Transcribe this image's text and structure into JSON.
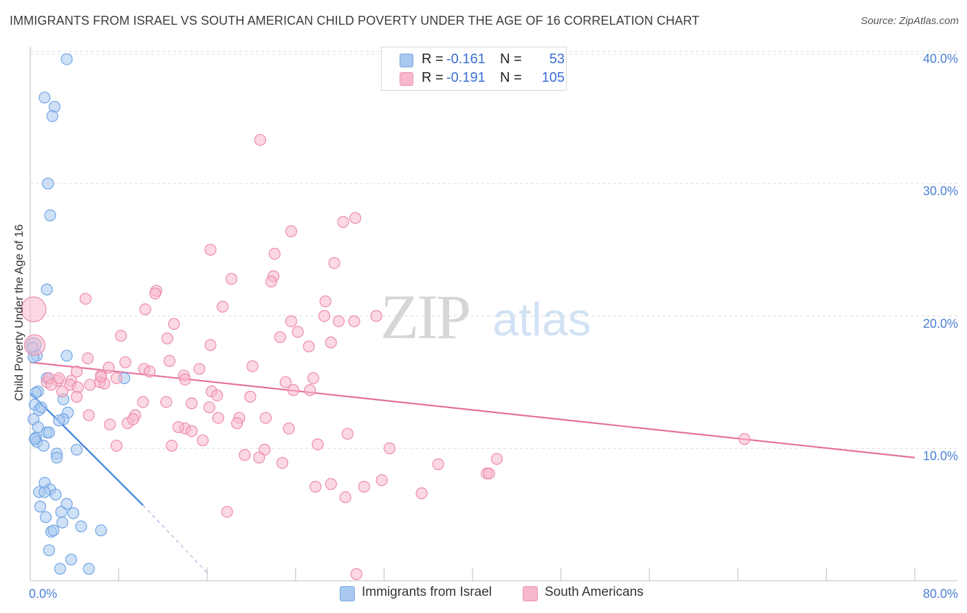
{
  "title": "IMMIGRANTS FROM ISRAEL VS SOUTH AMERICAN CHILD POVERTY UNDER THE AGE OF 16 CORRELATION CHART",
  "source": "Source: ZipAtlas.com",
  "watermark": {
    "zip": "ZIP",
    "atlas": "atlas"
  },
  "legend_stats": [
    {
      "r_label": "R =",
      "r_value": "-0.161",
      "n_label": "N =",
      "n_value": "53",
      "color": "#a8c8f0"
    },
    {
      "r_label": "R =",
      "r_value": "-0.191",
      "n_label": "N =",
      "n_value": "105",
      "color": "#f7b8cb"
    }
  ],
  "bottom_legend": [
    {
      "label": "Immigrants from Israel",
      "color": "#a8c8f0"
    },
    {
      "label": "South Americans",
      "color": "#f7b8cb"
    }
  ],
  "chart_data": {
    "type": "scatter",
    "ylabel": "Child Poverty Under the Age of 16",
    "xlabel": "",
    "xlim": [
      0,
      80
    ],
    "ylim": [
      0,
      42
    ],
    "x_tick_labels": [
      "0.0%",
      "80.0%"
    ],
    "y_ticks": [
      10,
      20,
      30,
      40
    ],
    "y_tick_labels": [
      "10.0%",
      "20.0%",
      "30.0%",
      "40.0%"
    ],
    "grid": "horizontal dashed",
    "series": [
      {
        "name": "Immigrants from Israel",
        "color": "#6fa3e6",
        "fill": "#a8c8f0",
        "trend": {
          "x0": 0.0,
          "y0": 14.2,
          "x1": 10.2,
          "y1": 5.7,
          "dash_to_x": 16.0,
          "dash_to_y": 0.6,
          "color": "#3a7ddb"
        },
        "points": [
          [
            3.3,
            39.4
          ],
          [
            1.3,
            36.5
          ],
          [
            2.2,
            35.8
          ],
          [
            2.0,
            35.1
          ],
          [
            1.6,
            30.0
          ],
          [
            1.8,
            27.6
          ],
          [
            1.5,
            22.0
          ],
          [
            0.3,
            17.8
          ],
          [
            0.6,
            17.0
          ],
          [
            3.3,
            17.0
          ],
          [
            1.5,
            15.3
          ],
          [
            8.5,
            15.3
          ],
          [
            0.7,
            14.3
          ],
          [
            3.0,
            13.7
          ],
          [
            0.4,
            13.3
          ],
          [
            0.8,
            12.9
          ],
          [
            3.4,
            12.7
          ],
          [
            0.3,
            12.2
          ],
          [
            3.0,
            12.2
          ],
          [
            0.7,
            11.6
          ],
          [
            1.5,
            11.2
          ],
          [
            1.7,
            11.2
          ],
          [
            0.5,
            10.8
          ],
          [
            0.6,
            10.5
          ],
          [
            1.2,
            10.2
          ],
          [
            2.4,
            9.6
          ],
          [
            4.2,
            9.9
          ],
          [
            2.4,
            9.3
          ],
          [
            1.3,
            7.4
          ],
          [
            1.8,
            6.9
          ],
          [
            0.8,
            6.7
          ],
          [
            1.3,
            6.7
          ],
          [
            2.3,
            6.5
          ],
          [
            3.3,
            5.8
          ],
          [
            0.9,
            5.6
          ],
          [
            1.4,
            4.8
          ],
          [
            2.8,
            5.2
          ],
          [
            3.9,
            5.1
          ],
          [
            2.9,
            4.4
          ],
          [
            4.6,
            4.1
          ],
          [
            1.9,
            3.7
          ],
          [
            2.1,
            3.8
          ],
          [
            6.4,
            3.8
          ],
          [
            1.7,
            2.3
          ],
          [
            3.7,
            1.6
          ],
          [
            2.7,
            0.9
          ],
          [
            5.3,
            0.9
          ],
          [
            0.2,
            17.6
          ],
          [
            0.3,
            16.9
          ],
          [
            0.5,
            14.2
          ],
          [
            1.0,
            13.1
          ],
          [
            0.4,
            10.7
          ],
          [
            2.6,
            12.1
          ]
        ]
      },
      {
        "name": "South Americans",
        "color": "#ec8aaa",
        "fill": "#f7b8cb",
        "trend": {
          "x0": 0.0,
          "y0": 16.5,
          "x1": 80.0,
          "y1": 9.3,
          "color": "#e4709a"
        },
        "points": [
          [
            0.3,
            20.5
          ],
          [
            0.4,
            17.8
          ],
          [
            1.5,
            15.0
          ],
          [
            2.5,
            15.1
          ],
          [
            1.7,
            15.3
          ],
          [
            5.0,
            21.3
          ],
          [
            20.8,
            33.3
          ],
          [
            28.3,
            27.1
          ],
          [
            29.4,
            27.4
          ],
          [
            23.6,
            26.4
          ],
          [
            16.3,
            25.0
          ],
          [
            27.5,
            24.0
          ],
          [
            22.1,
            24.7
          ],
          [
            22.0,
            23.0
          ],
          [
            21.8,
            22.6
          ],
          [
            18.2,
            22.8
          ],
          [
            11.4,
            21.9
          ],
          [
            11.3,
            21.7
          ],
          [
            17.4,
            20.7
          ],
          [
            26.7,
            21.1
          ],
          [
            10.4,
            20.5
          ],
          [
            23.6,
            19.6
          ],
          [
            27.9,
            19.6
          ],
          [
            26.6,
            20.0
          ],
          [
            29.3,
            19.6
          ],
          [
            31.3,
            20.0
          ],
          [
            13.0,
            19.4
          ],
          [
            24.2,
            18.8
          ],
          [
            8.2,
            18.5
          ],
          [
            12.4,
            18.3
          ],
          [
            22.6,
            18.4
          ],
          [
            27.2,
            18.0
          ],
          [
            25.2,
            17.7
          ],
          [
            16.3,
            17.8
          ],
          [
            5.2,
            16.8
          ],
          [
            12.6,
            16.6
          ],
          [
            8.6,
            16.5
          ],
          [
            7.1,
            16.1
          ],
          [
            10.3,
            16.0
          ],
          [
            15.3,
            16.0
          ],
          [
            20.1,
            16.2
          ],
          [
            4.2,
            15.8
          ],
          [
            10.8,
            15.8
          ],
          [
            6.4,
            15.5
          ],
          [
            13.9,
            15.5
          ],
          [
            2.6,
            15.3
          ],
          [
            3.7,
            15.1
          ],
          [
            6.3,
            15.0
          ],
          [
            6.7,
            14.9
          ],
          [
            14.0,
            15.2
          ],
          [
            23.1,
            15.0
          ],
          [
            25.6,
            15.3
          ],
          [
            5.4,
            14.8
          ],
          [
            3.6,
            14.8
          ],
          [
            4.3,
            14.6
          ],
          [
            23.8,
            14.4
          ],
          [
            25.3,
            14.4
          ],
          [
            16.4,
            14.3
          ],
          [
            4.2,
            13.9
          ],
          [
            16.9,
            14.0
          ],
          [
            19.9,
            13.9
          ],
          [
            10.2,
            13.5
          ],
          [
            14.6,
            13.4
          ],
          [
            12.3,
            13.5
          ],
          [
            16.2,
            13.1
          ],
          [
            5.3,
            12.5
          ],
          [
            9.5,
            12.5
          ],
          [
            17.0,
            12.3
          ],
          [
            18.9,
            12.3
          ],
          [
            21.3,
            12.3
          ],
          [
            8.8,
            11.9
          ],
          [
            18.7,
            11.9
          ],
          [
            7.2,
            11.8
          ],
          [
            14.0,
            11.5
          ],
          [
            14.6,
            11.3
          ],
          [
            23.4,
            11.5
          ],
          [
            28.7,
            11.1
          ],
          [
            15.6,
            10.6
          ],
          [
            64.6,
            10.7
          ],
          [
            7.8,
            10.2
          ],
          [
            12.8,
            10.2
          ],
          [
            26.0,
            10.3
          ],
          [
            32.5,
            10.0
          ],
          [
            21.2,
            9.9
          ],
          [
            19.4,
            9.5
          ],
          [
            20.7,
            9.3
          ],
          [
            42.2,
            9.2
          ],
          [
            22.8,
            8.9
          ],
          [
            36.9,
            8.8
          ],
          [
            41.3,
            8.1
          ],
          [
            41.5,
            8.1
          ],
          [
            31.8,
            7.6
          ],
          [
            27.2,
            7.3
          ],
          [
            25.8,
            7.1
          ],
          [
            30.2,
            7.1
          ],
          [
            35.4,
            6.6
          ],
          [
            28.5,
            6.3
          ],
          [
            17.8,
            5.2
          ],
          [
            29.5,
            0.5
          ],
          [
            9.3,
            12.2
          ],
          [
            13.4,
            11.6
          ],
          [
            6.4,
            15.4
          ],
          [
            7.8,
            15.3
          ],
          [
            1.9,
            14.8
          ],
          [
            2.9,
            14.3
          ]
        ]
      }
    ]
  }
}
